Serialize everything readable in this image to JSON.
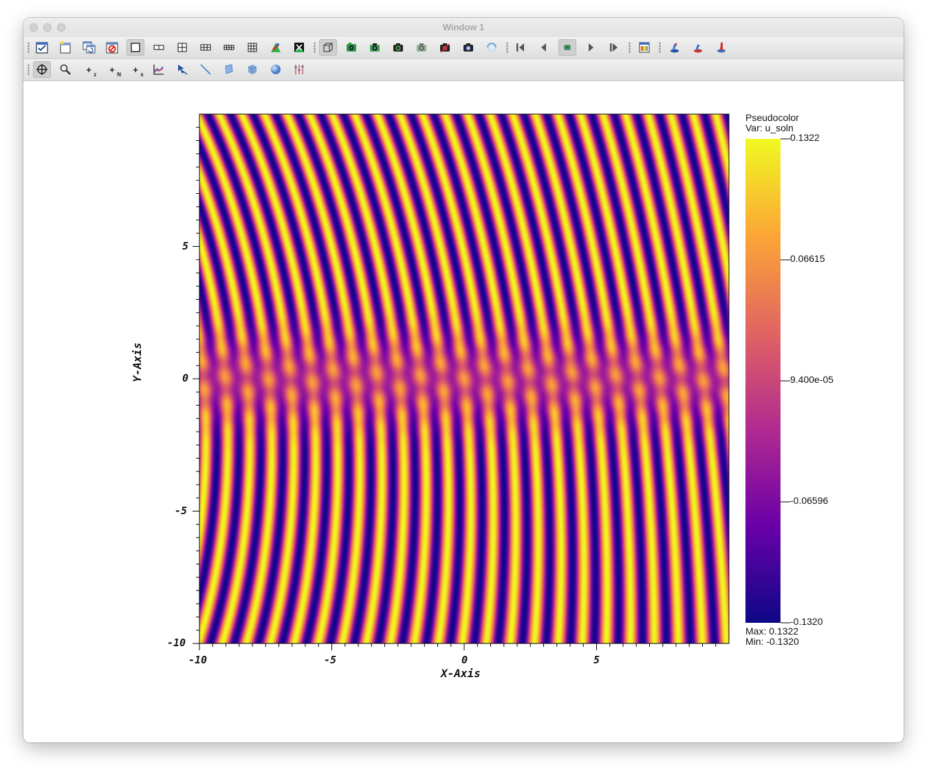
{
  "window": {
    "title": "Window 1"
  },
  "toolbar1": {
    "icons": [
      "add-plot-icon",
      "new-window-icon",
      "copy-window-icon",
      "delete-window-icon",
      "layout-1x1-icon",
      "layout-1x2-icon",
      "layout-2x2-icon",
      "layout-2x3-icon",
      "layout-2x4-icon",
      "layout-3x3-icon",
      "lock-view-icon",
      "lock-time-icon",
      "view-3d-icon",
      "save-window-icon",
      "camera-icon",
      "camera-2-icon",
      "camera-3-icon",
      "camera-4-icon",
      "camera-5-icon",
      "spin-icon",
      "first-frame-icon",
      "reverse-step-icon",
      "stop-icon",
      "play-icon",
      "forward-step-icon",
      "inspector-icon",
      "tool-1-icon",
      "tool-2-icon",
      "tool-3-icon"
    ]
  },
  "toolbar2": {
    "navigate_label": "navigate",
    "zoom_label": "zoom",
    "plus_z": "+",
    "sub_z": "z",
    "plus_n": "+",
    "sub_n": "N",
    "plus_s": "+",
    "sub_s": "s"
  },
  "plot": {
    "x_axis_title": "X-Axis",
    "y_axis_title": "Y-Axis",
    "x_ticks": [
      "-10",
      "-5",
      "0",
      "5"
    ],
    "y_ticks": [
      "5",
      "0",
      "-5",
      "-10"
    ]
  },
  "legend": {
    "title": "Pseudocolor",
    "var_label": "Var: u_soln",
    "ticks": [
      "0.1322",
      "0.06615",
      "9.400e-05",
      "-0.06596",
      "-0.1320"
    ],
    "max_label": "Max:  0.1322",
    "min_label": "Min: -0.1320"
  },
  "chart_data": {
    "type": "heatmap",
    "title": "",
    "xlabel": "X-Axis",
    "ylabel": "Y-Axis",
    "xlim": [
      -10,
      10
    ],
    "ylim": [
      -10,
      10
    ],
    "variable": "u_soln",
    "colormap": [
      "#0d0887",
      "#6a00a8",
      "#b12a90",
      "#e16462",
      "#fca636",
      "#f0f921"
    ],
    "value_range": [
      -0.132,
      0.1322
    ],
    "colorbar_ticks": [
      0.1322,
      0.06615,
      9.4e-05,
      -0.06596,
      -0.132
    ]
  }
}
